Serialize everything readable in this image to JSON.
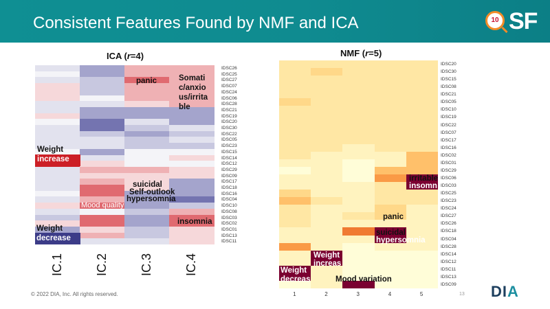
{
  "header": {
    "title": "Consistent Features Found by NMF and ICA",
    "logo_badge": "10",
    "logo_text": "SF"
  },
  "ica": {
    "title_prefix": "ICA (",
    "title_var": "r",
    "title_suffix": "=4)",
    "columns": [
      "IC.1",
      "IC.2",
      "IC.3",
      "IC.4"
    ],
    "rows": [
      "IDSC26",
      "IDSC25",
      "IDSC27",
      "IDSC07",
      "IDSC24",
      "IDSC06",
      "IDSC28",
      "IDSC21",
      "IDSC19",
      "IDSC20",
      "IDSC30",
      "IDSC22",
      "IDSC05",
      "IDSC23",
      "IDSC15",
      "IDSC14",
      "IDSC12",
      "IDSC29",
      "IDSC09",
      "IDSC17",
      "IDSC18",
      "IDSC16",
      "IDSC04",
      "IDSC10",
      "IDSC08",
      "IDSC03",
      "IDSC02",
      "IDSC01",
      "IDSC13",
      "IDSC11"
    ],
    "annotations": {
      "weight_increase_1": "Weight",
      "weight_increase_2": "increase",
      "weight_decrease_1": "Weight",
      "weight_decrease_2": "decrease",
      "mood_quality": "Mood quality",
      "panic": "panic",
      "suicidal": "suicidal",
      "self_outlook": "Self-outlook",
      "hypersomnia": "hypersomnia",
      "somatic_1": "Somati",
      "somatic_2": "c/anxio",
      "somatic_3": "us/irrita",
      "somatic_4": "ble",
      "insomnia": "insomnia"
    }
  },
  "nmf": {
    "title_prefix": "NMF (",
    "title_var": "r",
    "title_suffix": "=5)",
    "columns": [
      "1",
      "2",
      "3",
      "4",
      "5"
    ],
    "rows": [
      "IDSC20",
      "IDSC30",
      "IDSC15",
      "IDSC08",
      "IDSC21",
      "IDSC05",
      "IDSC10",
      "IDSC19",
      "IDSC22",
      "IDSC07",
      "IDSC17",
      "IDSC16",
      "IDSC02",
      "IDSC01",
      "IDSC29",
      "IDSC06",
      "IDSC03",
      "IDSC25",
      "IDSC23",
      "IDSC24",
      "IDSC27",
      "IDSC26",
      "IDSC18",
      "IDSC04",
      "IDSC28",
      "IDSC14",
      "IDSC12",
      "IDSC11",
      "IDSC13",
      "IDSC09"
    ],
    "annotations": {
      "irritable": "irritable",
      "insomnia": "insomn",
      "panic": "panic",
      "suicidal": "suicidal",
      "hypersomnia": "hypersomnia",
      "weight_increase_1": "Weight",
      "weight_increase_2": "increas",
      "weight_decrease_1": "Weight",
      "weight_decrease_2": "decreas",
      "mood_variation": "Mood variation"
    }
  },
  "footer": {
    "copyright": "© 2022 DIA, Inc. All rights reserved.",
    "page": "13",
    "brand_main": "DI",
    "brand_accent": "A"
  }
}
